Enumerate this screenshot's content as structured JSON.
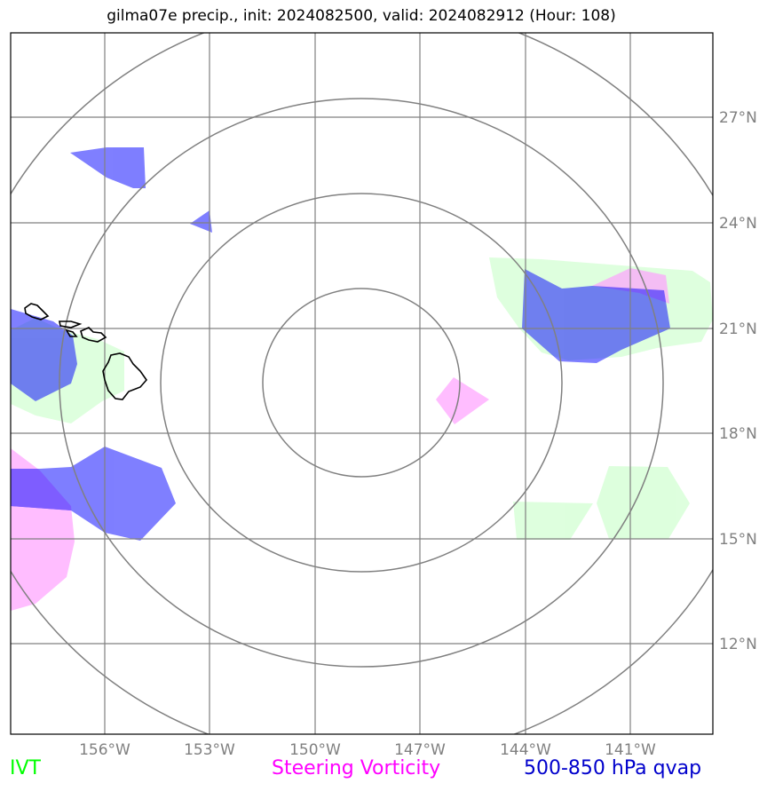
{
  "title": "gilma07e precip., init: 2024082500, valid: 2024082912 (Hour: 108)",
  "map": {
    "lon_labels": [
      "156°W",
      "153°W",
      "150°W",
      "147°W",
      "144°W",
      "141°W"
    ],
    "lat_labels": [
      "27°N",
      "24°N",
      "21°N",
      "18°N",
      "15°N",
      "12°N"
    ],
    "colors": {
      "ivt": "#ccffcc",
      "vorticity": "#ff99ff",
      "qvap": "#0000ff",
      "grid": "#808080",
      "rings": "#808080",
      "coast": "#000000"
    }
  },
  "legend": {
    "ivt": {
      "label": "IVT",
      "color": "#00ff00"
    },
    "vorticity": {
      "label": "Steering Vorticity",
      "color": "#ff00ff"
    },
    "qvap": {
      "label": "500-850 hPa qvap",
      "color": "#0000cc"
    }
  }
}
